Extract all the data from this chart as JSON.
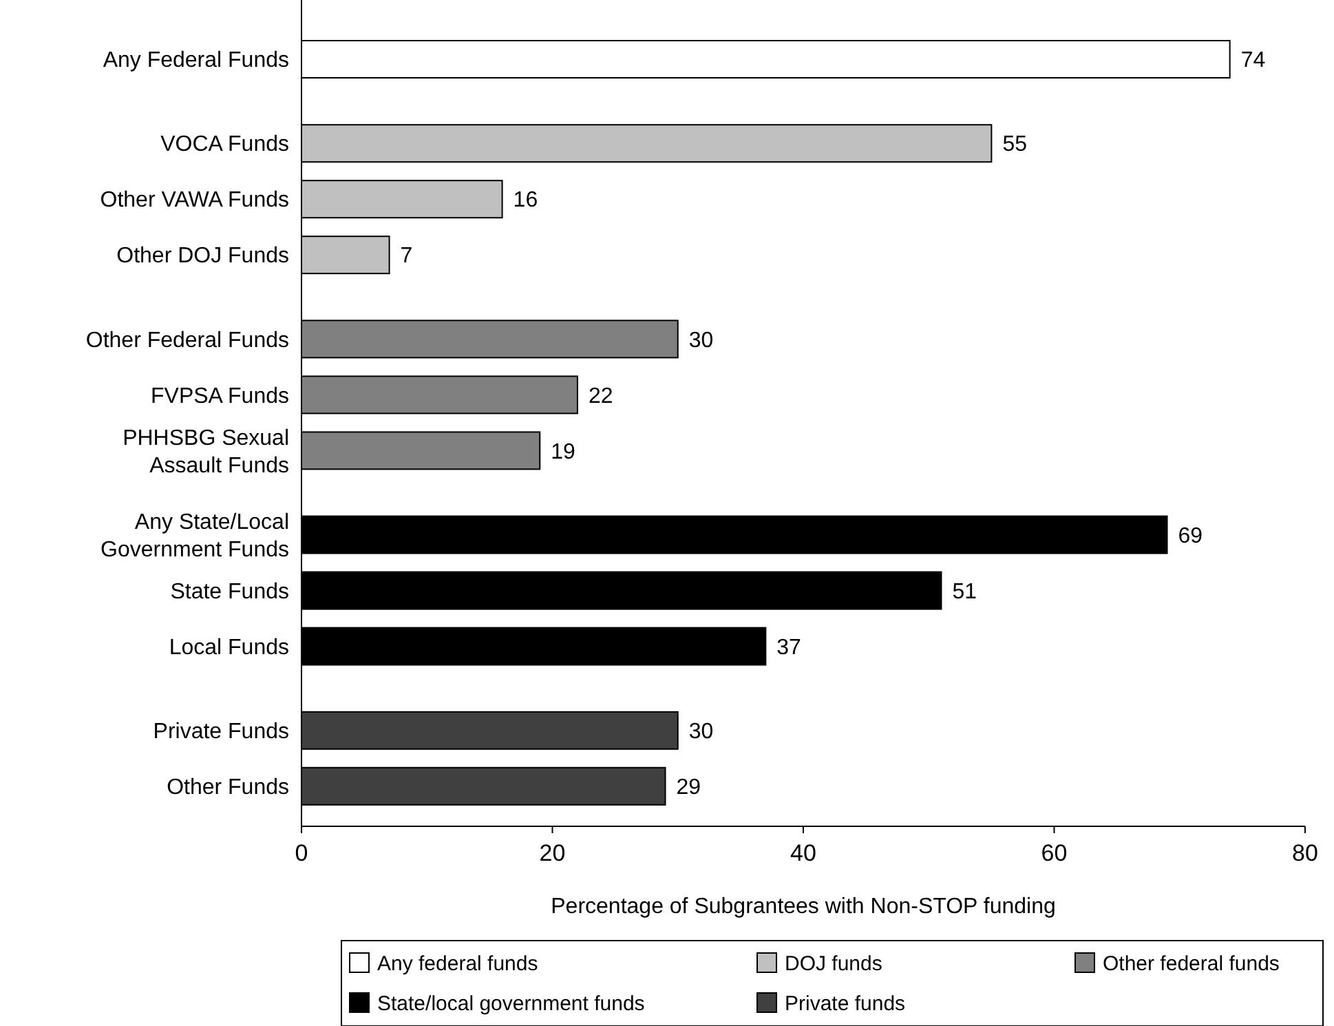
{
  "chart_data": {
    "type": "bar",
    "orientation": "horizontal",
    "xlabel": "Percentage of Subgrantees with Non-STOP funding",
    "categories": [
      "Any Federal Funds",
      "VOCA Funds",
      "Other VAWA Funds",
      "Other DOJ Funds",
      "Other Federal Funds",
      "FVPSA Funds",
      "PHHSBG Sexual Assault Funds",
      "Any State/Local Government Funds",
      "State Funds",
      "Local Funds",
      "Private Funds",
      "Other Funds"
    ],
    "series": [
      {
        "name": "Any federal funds",
        "color": "#ffffff",
        "values": [
          74,
          null,
          null,
          null,
          null,
          null,
          null,
          null,
          null,
          null,
          null,
          null
        ]
      },
      {
        "name": "DOJ funds",
        "color": "#c0c0c0",
        "values": [
          null,
          55,
          16,
          7,
          null,
          null,
          null,
          null,
          null,
          null,
          null,
          null
        ]
      },
      {
        "name": "Other federal funds",
        "color": "#808080",
        "values": [
          null,
          null,
          null,
          null,
          30,
          22,
          19,
          null,
          null,
          null,
          null,
          null
        ]
      },
      {
        "name": "State/local government funds",
        "color": "#000000",
        "values": [
          null,
          null,
          null,
          null,
          null,
          null,
          null,
          69,
          51,
          37,
          null,
          null
        ]
      },
      {
        "name": "Private funds",
        "color": "#404040",
        "values": [
          null,
          null,
          null,
          null,
          null,
          null,
          null,
          null,
          null,
          null,
          30,
          29
        ]
      }
    ],
    "xlim": [
      0,
      80
    ],
    "xticks": [
      0,
      20,
      40,
      60,
      80
    ],
    "data_labels": true,
    "grid": false,
    "legend": "bottom"
  }
}
